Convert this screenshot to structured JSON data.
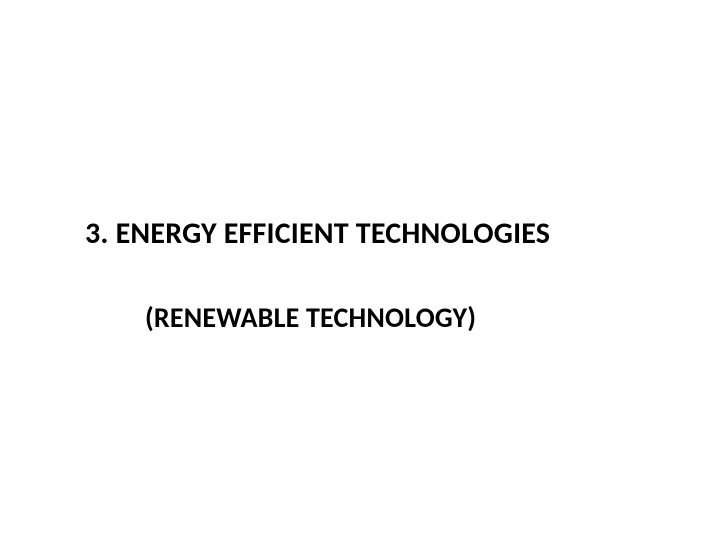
{
  "slide": {
    "heading_main": "3. ENERGY EFFICIENT TECHNOLOGIES",
    "heading_sub": "(RENEWABLE TECHNOLOGY)",
    "background_color": "#ffffff",
    "text_color": "#000000",
    "heading_main_fontsize": 30,
    "heading_sub_fontsize": 28,
    "font_weight": "bold"
  }
}
